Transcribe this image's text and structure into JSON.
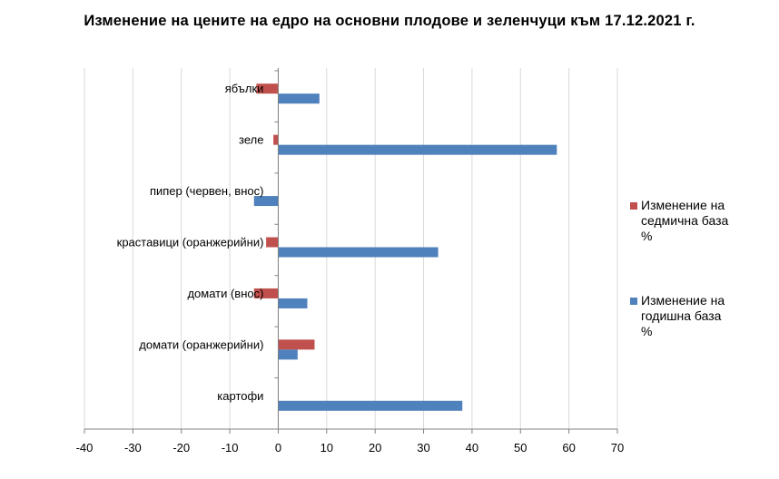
{
  "chart_data": {
    "type": "bar",
    "orientation": "horizontal",
    "title": "Изменение на цените на едро на основни плодове и зеленчуци към 17.12.2021 г.",
    "categories": [
      "ябълки",
      "зеле",
      "пипер (червен, внос)",
      "краставици (оранжерийни)",
      "домати (внос)",
      "домати (оранжерийни)",
      "картофи"
    ],
    "series": [
      {
        "name": "Изменение на седмична база %",
        "color": "#C0504D",
        "values": [
          -4.5,
          -1.0,
          0,
          -2.5,
          -5.0,
          7.5,
          0
        ]
      },
      {
        "name": "Изменение на годишна база %",
        "color": "#4F81BD",
        "values": [
          8.5,
          57.5,
          -5.0,
          33.0,
          6.0,
          4.0,
          38.0
        ]
      }
    ],
    "xlim": [
      -40,
      70
    ],
    "xticks": [
      -40,
      -30,
      -20,
      -10,
      0,
      10,
      20,
      30,
      40,
      50,
      60,
      70
    ],
    "grid": true,
    "legend_position": "right"
  },
  "legend": {
    "weekly_lines": [
      "Изменение на",
      "седмична база",
      "%"
    ],
    "annual_lines": [
      "Изменение на",
      "годишна база",
      "%"
    ]
  }
}
